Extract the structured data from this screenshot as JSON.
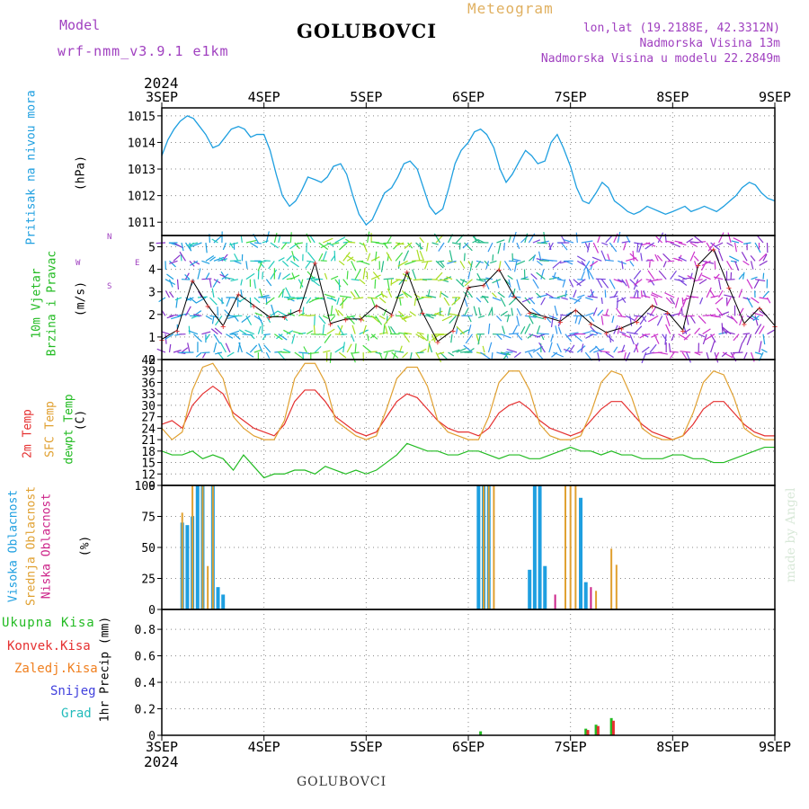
{
  "header": {
    "model_label": "Model",
    "model_name": "wrf-nmm_v3.9.1 e1km",
    "station": "GOLUBOVCI",
    "meteogram": "Meteogram",
    "lonlat": "lon,lat (19.2188E, 42.3312N)",
    "altitude": "Nadmorska Visina 13m",
    "model_altitude": "Nadmorska Visina u modelu 22.2849m",
    "year_top": "2024"
  },
  "footer": {
    "station": "GOLUBOVCI",
    "year_bottom": "2024",
    "credit": "made by Angel"
  },
  "colors": {
    "pressure": "#1e9fe0",
    "temp2m": "#e53030",
    "sfc_temp": "#e0a030",
    "dewpoint": "#22bb22",
    "cloud_high": "#1e9fe0",
    "cloud_mid": "#e0a030",
    "cloud_low": "#cc2288",
    "wind_label": "#22bb22",
    "precip_total": "#22bb22",
    "precip_conv": "#e53030",
    "precip_frozen": "#f08020",
    "precip_snow": "#4040dd",
    "precip_graupel": "#22bbbb",
    "header_purple": "#a040c0"
  },
  "panels": {
    "pressure": {
      "title": "Pritisak na nivou mora",
      "unit": "(hPa)"
    },
    "wind": {
      "title1": "10m Vjetar",
      "title2": "Brzina i Pravac",
      "unit": "(m/s)",
      "compass_w": "W",
      "compass_e": "E",
      "compass_n": "N",
      "compass_s": "S"
    },
    "temp": {
      "label1": "2m Temp",
      "label2": "SFC Temp",
      "label3": "dewpt Temp",
      "unit": "(C)"
    },
    "cloud": {
      "label1": "Visoka Oblacnost",
      "label2": "Srednja Oblacnost",
      "label3": "Niska Oblacnost",
      "unit": "(%)"
    },
    "precip": {
      "labels": [
        "Ukupna Kisa",
        "Konvek.Kisa",
        "Zaledj.Kisa",
        "Snijeg",
        "Grad"
      ],
      "unit": "1hr Precip (mm)"
    }
  },
  "chart_data": [
    {
      "type": "line",
      "title": "Pritisak na nivou mora",
      "ylabel": "(hPa)",
      "x_ticks": [
        "3SEP",
        "4SEP",
        "5SEP",
        "6SEP",
        "7SEP",
        "8SEP",
        "9SEP"
      ],
      "ylim": [
        1010.5,
        1015.3
      ],
      "yticks": [
        1011,
        1012,
        1013,
        1014,
        1015
      ],
      "series": [
        {
          "name": "Pritisak na nivou mora",
          "x": [
            0,
            0.06,
            0.12,
            0.18,
            0.25,
            0.31,
            0.37,
            0.43,
            0.5,
            0.56,
            0.62,
            0.68,
            0.75,
            0.81,
            0.87,
            0.93,
            1.0,
            1.06,
            1.12,
            1.18,
            1.25,
            1.31,
            1.37,
            1.43,
            1.5,
            1.56,
            1.62,
            1.68,
            1.75,
            1.81,
            1.87,
            1.93,
            2.0,
            2.06,
            2.12,
            2.18,
            2.25,
            2.31,
            2.37,
            2.43,
            2.5,
            2.56,
            2.62,
            2.68,
            2.75,
            2.81,
            2.87,
            2.93,
            3.0,
            3.06,
            3.12,
            3.18,
            3.25,
            3.31,
            3.37,
            3.43,
            3.5,
            3.56,
            3.62,
            3.68,
            3.75,
            3.81,
            3.87,
            3.93,
            4.0,
            4.06,
            4.12,
            4.18,
            4.25,
            4.31,
            4.37,
            4.43,
            4.5,
            4.56,
            4.62,
            4.68,
            4.75,
            4.81,
            4.87,
            4.93,
            5.0,
            5.06,
            5.12,
            5.18,
            5.25,
            5.31,
            5.37,
            5.43,
            5.5,
            5.56,
            5.62,
            5.68,
            5.75,
            5.81,
            5.87,
            5.93,
            6.0
          ],
          "y": [
            1013.5,
            1014.1,
            1014.5,
            1014.8,
            1015.0,
            1014.9,
            1014.6,
            1014.3,
            1013.8,
            1013.9,
            1014.2,
            1014.5,
            1014.6,
            1014.5,
            1014.2,
            1014.3,
            1014.3,
            1013.7,
            1012.8,
            1012.0,
            1011.6,
            1011.8,
            1012.2,
            1012.7,
            1012.6,
            1012.5,
            1012.7,
            1013.1,
            1013.2,
            1012.8,
            1012.0,
            1011.3,
            1010.9,
            1011.1,
            1011.6,
            1012.1,
            1012.3,
            1012.7,
            1013.2,
            1013.3,
            1013.0,
            1012.3,
            1011.6,
            1011.3,
            1011.5,
            1012.3,
            1013.2,
            1013.7,
            1014.0,
            1014.4,
            1014.5,
            1014.3,
            1013.8,
            1013.0,
            1012.5,
            1012.8,
            1013.3,
            1013.7,
            1013.5,
            1013.2,
            1013.3,
            1014.0,
            1014.3,
            1013.8,
            1013.1,
            1012.3,
            1011.8,
            1011.7,
            1012.1,
            1012.5,
            1012.3,
            1011.8,
            1011.6,
            1011.4,
            1011.3,
            1011.4,
            1011.6,
            1011.5,
            1011.4,
            1011.3,
            1011.4,
            1011.5,
            1011.6,
            1011.4,
            1011.5,
            1011.6,
            1011.5,
            1011.4,
            1011.6,
            1011.8,
            1012.0,
            1012.3,
            1012.5,
            1012.4,
            1012.1,
            1011.9,
            1011.8
          ]
        }
      ]
    },
    {
      "type": "line",
      "title": "10m Vjetar Brzina i Pravac",
      "ylabel": "(m/s)",
      "x_ticks": [
        "3SEP",
        "4SEP",
        "5SEP",
        "6SEP",
        "7SEP",
        "8SEP",
        "9SEP"
      ],
      "ylim": [
        0,
        5.5
      ],
      "yticks": [
        0,
        1,
        2,
        3,
        4,
        5
      ],
      "series": [
        {
          "name": "speed",
          "x": [
            0,
            0.15,
            0.3,
            0.45,
            0.6,
            0.75,
            0.9,
            1.05,
            1.2,
            1.35,
            1.5,
            1.65,
            1.8,
            1.95,
            2.1,
            2.25,
            2.4,
            2.55,
            2.7,
            2.85,
            3.0,
            3.15,
            3.3,
            3.45,
            3.6,
            3.75,
            3.9,
            4.05,
            4.2,
            4.35,
            4.5,
            4.65,
            4.8,
            4.95,
            5.1,
            5.25,
            5.4,
            5.55,
            5.7,
            5.85,
            6.0
          ],
          "y": [
            0.9,
            1.3,
            3.5,
            2.4,
            1.5,
            2.9,
            2.4,
            1.9,
            1.9,
            2.2,
            4.3,
            1.6,
            1.8,
            1.8,
            2.4,
            2.0,
            3.9,
            2.1,
            0.8,
            1.3,
            3.2,
            3.3,
            4.0,
            2.8,
            2.1,
            1.9,
            1.7,
            2.2,
            1.6,
            1.2,
            1.4,
            1.7,
            2.4,
            2.1,
            1.3,
            4.2,
            4.9,
            3.2,
            1.6,
            2.3,
            1.5
          ]
        }
      ]
    },
    {
      "type": "line",
      "title": "2m Temp / SFC Temp / dewpt Temp",
      "ylabel": "(C)",
      "x_ticks": [
        "3SEP",
        "4SEP",
        "5SEP",
        "6SEP",
        "7SEP",
        "8SEP",
        "9SEP"
      ],
      "ylim": [
        9,
        42
      ],
      "yticks": [
        9,
        12,
        15,
        18,
        21,
        24,
        27,
        30,
        33,
        36,
        39,
        42
      ],
      "series": [
        {
          "name": "2m Temp",
          "x": [
            0,
            0.1,
            0.2,
            0.3,
            0.4,
            0.5,
            0.6,
            0.7,
            0.8,
            0.9,
            1.0,
            1.1,
            1.2,
            1.3,
            1.4,
            1.5,
            1.6,
            1.7,
            1.8,
            1.9,
            2.0,
            2.1,
            2.2,
            2.3,
            2.4,
            2.5,
            2.6,
            2.7,
            2.8,
            2.9,
            3.0,
            3.1,
            3.2,
            3.3,
            3.4,
            3.5,
            3.6,
            3.7,
            3.8,
            3.9,
            4.0,
            4.1,
            4.2,
            4.3,
            4.4,
            4.5,
            4.6,
            4.7,
            4.8,
            4.9,
            5.0,
            5.1,
            5.2,
            5.3,
            5.4,
            5.5,
            5.6,
            5.7,
            5.8,
            5.9,
            6.0
          ],
          "y": [
            25,
            26,
            24,
            30,
            33,
            35,
            33,
            28,
            26,
            24,
            23,
            22,
            25,
            31,
            34,
            34,
            31,
            27,
            25,
            23,
            22,
            23,
            27,
            31,
            33,
            32,
            29,
            26,
            24,
            23,
            23,
            22,
            24,
            28,
            30,
            31,
            29,
            26,
            24,
            23,
            22,
            23,
            26,
            29,
            31,
            31,
            28,
            25,
            23,
            22,
            21,
            22,
            25,
            29,
            31,
            31,
            28,
            25,
            23,
            22,
            22
          ]
        },
        {
          "name": "SFC Temp",
          "x": [
            0,
            0.1,
            0.2,
            0.3,
            0.4,
            0.5,
            0.6,
            0.7,
            0.8,
            0.9,
            1.0,
            1.1,
            1.2,
            1.3,
            1.4,
            1.5,
            1.6,
            1.7,
            1.8,
            1.9,
            2.0,
            2.1,
            2.2,
            2.3,
            2.4,
            2.5,
            2.6,
            2.7,
            2.8,
            2.9,
            3.0,
            3.1,
            3.2,
            3.3,
            3.4,
            3.5,
            3.6,
            3.7,
            3.8,
            3.9,
            4.0,
            4.1,
            4.2,
            4.3,
            4.4,
            4.5,
            4.6,
            4.7,
            4.8,
            4.9,
            5.0,
            5.1,
            5.2,
            5.3,
            5.4,
            5.5,
            5.6,
            5.7,
            5.8,
            5.9,
            6.0
          ],
          "y": [
            24,
            21,
            23,
            34,
            40,
            41,
            37,
            27,
            24,
            22,
            21,
            21,
            26,
            37,
            41,
            41,
            36,
            26,
            24,
            22,
            21,
            22,
            29,
            37,
            40,
            40,
            35,
            26,
            23,
            22,
            21,
            21,
            27,
            36,
            39,
            39,
            34,
            25,
            22,
            21,
            21,
            22,
            28,
            36,
            39,
            38,
            32,
            24,
            22,
            21,
            21,
            22,
            28,
            36,
            39,
            38,
            32,
            24,
            22,
            21,
            21
          ]
        },
        {
          "name": "dewpt Temp",
          "x": [
            0,
            0.1,
            0.2,
            0.3,
            0.4,
            0.5,
            0.6,
            0.7,
            0.8,
            0.9,
            1.0,
            1.1,
            1.2,
            1.3,
            1.4,
            1.5,
            1.6,
            1.7,
            1.8,
            1.9,
            2.0,
            2.1,
            2.2,
            2.3,
            2.4,
            2.5,
            2.6,
            2.7,
            2.8,
            2.9,
            3.0,
            3.1,
            3.2,
            3.3,
            3.4,
            3.5,
            3.6,
            3.7,
            3.8,
            3.9,
            4.0,
            4.1,
            4.2,
            4.3,
            4.4,
            4.5,
            4.6,
            4.7,
            4.8,
            4.9,
            5.0,
            5.1,
            5.2,
            5.3,
            5.4,
            5.5,
            5.6,
            5.7,
            5.8,
            5.9,
            6.0
          ],
          "y": [
            18,
            17,
            17,
            18,
            16,
            17,
            16,
            13,
            17,
            14,
            11,
            12,
            12,
            13,
            13,
            12,
            14,
            13,
            12,
            13,
            12,
            13,
            15,
            17,
            20,
            19,
            18,
            18,
            17,
            17,
            18,
            18,
            17,
            16,
            17,
            17,
            16,
            16,
            17,
            18,
            19,
            18,
            18,
            17,
            18,
            17,
            17,
            16,
            16,
            16,
            17,
            17,
            16,
            16,
            15,
            15,
            16,
            17,
            18,
            19,
            19
          ]
        }
      ]
    },
    {
      "type": "bar",
      "title": "Visoka / Srednja / Niska Oblacnost",
      "ylabel": "(%)",
      "x_ticks": [
        "3SEP",
        "4SEP",
        "5SEP",
        "6SEP",
        "7SEP",
        "8SEP",
        "9SEP"
      ],
      "ylim": [
        0,
        100
      ],
      "yticks": [
        0,
        25,
        50,
        75,
        100
      ],
      "series": [
        {
          "name": "Visoka Oblacnost",
          "x": [
            0.2,
            0.25,
            0.3,
            0.35,
            0.4,
            0.5,
            0.55,
            0.6,
            3.1,
            3.15,
            3.2,
            3.6,
            3.65,
            3.7,
            3.75,
            4.1,
            4.15
          ],
          "y": [
            70,
            68,
            75,
            100,
            100,
            100,
            18,
            12,
            100,
            100,
            100,
            32,
            100,
            100,
            35,
            90,
            22
          ]
        },
        {
          "name": "Srednja Oblacnost",
          "x": [
            0.2,
            0.3,
            0.4,
            0.45,
            0.5,
            3.15,
            3.2,
            3.25,
            3.95,
            4.0,
            4.05,
            4.25,
            4.4,
            4.45
          ],
          "y": [
            78,
            100,
            100,
            35,
            100,
            100,
            100,
            100,
            100,
            100,
            100,
            15,
            49,
            36
          ]
        },
        {
          "name": "Niska Oblacnost",
          "x": [
            3.85,
            4.2
          ],
          "y": [
            12,
            18
          ]
        }
      ]
    },
    {
      "type": "bar",
      "title": "1hr Precip",
      "ylabel": "1hr Precip (mm)",
      "x_ticks": [
        "3SEP",
        "4SEP",
        "5SEP",
        "6SEP",
        "7SEP",
        "8SEP",
        "9SEP"
      ],
      "ylim": [
        0,
        0.95
      ],
      "yticks": [
        0,
        0.2,
        0.4,
        0.6,
        0.8
      ],
      "series": [
        {
          "name": "Ukupna Kisa",
          "x": [
            3.12,
            4.15,
            4.25,
            4.4
          ],
          "y": [
            0.03,
            0.05,
            0.08,
            0.13
          ]
        },
        {
          "name": "Konvek.Kisa",
          "x": [
            4.17,
            4.27,
            4.42
          ],
          "y": [
            0.04,
            0.07,
            0.11
          ]
        }
      ]
    }
  ]
}
